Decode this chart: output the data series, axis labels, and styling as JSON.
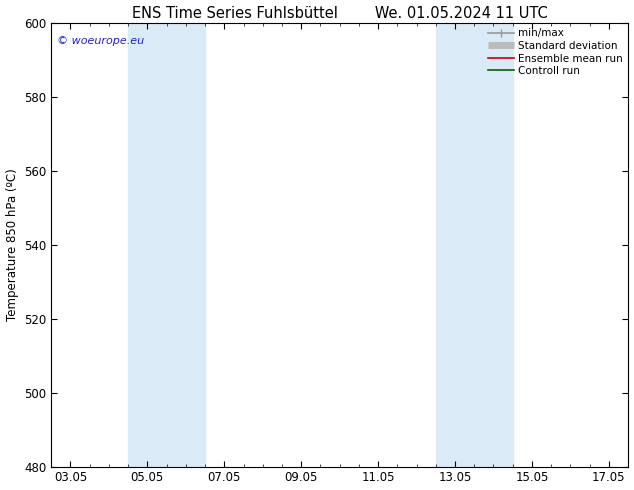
{
  "title_left": "ENS Time Series Fuhlsbüttel",
  "title_right": "We. 01.05.2024 11 UTC",
  "ylabel": "Temperature 850 hPa (ºC)",
  "ylim": [
    480,
    600
  ],
  "yticks": [
    480,
    500,
    520,
    540,
    560,
    580,
    600
  ],
  "xtick_labels": [
    "03.05",
    "05.05",
    "07.05",
    "09.05",
    "11.05",
    "13.05",
    "15.05",
    "17.05"
  ],
  "xtick_positions": [
    0,
    2,
    4,
    6,
    8,
    10,
    12,
    14
  ],
  "xlim": [
    -0.5,
    14.5
  ],
  "shaded_bands": [
    {
      "x_start": 1.5,
      "x_end": 3.5,
      "color": "#daeaf6"
    },
    {
      "x_start": 9.5,
      "x_end": 11.5,
      "color": "#daeaf6"
    }
  ],
  "watermark_text": "© woeurope.eu",
  "watermark_color": "#2222cc",
  "legend_items": [
    {
      "label": "min/max",
      "color": "#999999",
      "lw": 1.2
    },
    {
      "label": "Standard deviation",
      "color": "#bbbbbb",
      "lw": 5
    },
    {
      "label": "Ensemble mean run",
      "color": "#cc0000",
      "lw": 1.2
    },
    {
      "label": "Controll run",
      "color": "#006600",
      "lw": 1.2
    }
  ],
  "background_color": "#ffffff",
  "title_fontsize": 10.5,
  "axis_fontsize": 8.5,
  "legend_fontsize": 7.5,
  "ylabel_fontsize": 8.5
}
